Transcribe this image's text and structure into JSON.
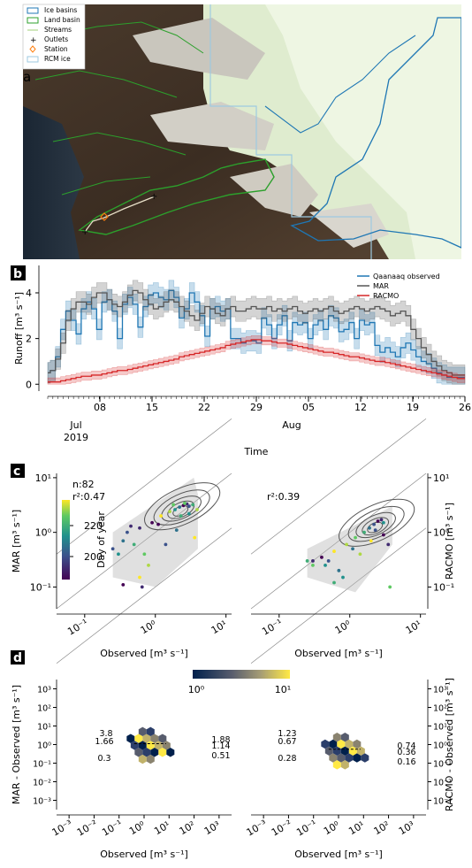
{
  "panels": {
    "a": {
      "label": "a",
      "legend": [
        {
          "label": "Ice basins",
          "symbol": "box",
          "color": "#1f77b4"
        },
        {
          "label": "Land basin",
          "symbol": "box",
          "color": "#2ca02c"
        },
        {
          "label": "Streams",
          "symbol": "line",
          "color": "#b0d890"
        },
        {
          "label": "Outlets",
          "symbol": "plus",
          "color": "#ff7f0e"
        },
        {
          "label": "Station",
          "symbol": "diamond",
          "color": "#ff7f0e"
        },
        {
          "label": "RCM ice",
          "symbol": "box",
          "color": "#9ecae1"
        }
      ]
    },
    "b": {
      "label": "b"
    },
    "c": {
      "label": "c"
    },
    "d": {
      "label": "d"
    }
  },
  "chart_data": [
    {
      "type": "line",
      "panel": "b",
      "ylabel": "Runoff [m³ s⁻¹]",
      "xlabel": "Time",
      "ylim": [
        -0.3,
        5.2
      ],
      "yticks": [
        "0",
        "2",
        "4"
      ],
      "xticks": [
        "08",
        "15",
        "22",
        "29",
        "05",
        "12",
        "19",
        "26"
      ],
      "month_labels": [
        {
          "text": "Jul",
          "sub": "2019"
        },
        {
          "text": "Aug",
          "sub": ""
        }
      ],
      "x_start": "2019-07-01",
      "series": [
        {
          "name": "Qaanaaq observed",
          "color": "#1f77b4",
          "values": [
            0.5,
            0.6,
            1.2,
            2.4,
            3.2,
            2.8,
            2.2,
            3.3,
            3.6,
            3.3,
            2.4,
            3.6,
            3.7,
            3.2,
            2.0,
            3.5,
            3.8,
            3.5,
            2.5,
            3.4,
            3.9,
            4.0,
            3.8,
            3.7,
            4.1,
            3.8,
            2.9,
            3.3,
            4.0,
            3.6,
            3.0,
            2.1,
            3.3,
            3.4,
            3.2,
            3.3,
            2.0,
            2.0,
            1.8,
            1.9,
            1.9,
            1.8,
            2.9,
            2.6,
            2.0,
            2.6,
            3.0,
            1.9,
            2.7,
            2.6,
            2.7,
            2.0,
            2.6,
            2.8,
            2.4,
            3.0,
            2.9,
            2.3,
            2.4,
            2.7,
            2.0,
            2.8,
            2.6,
            2.7,
            1.7,
            1.4,
            1.6,
            1.4,
            1.2,
            1.6,
            1.8,
            1.5,
            1.2,
            1.0,
            0.9,
            0.7,
            0.5,
            0.4,
            0.3,
            0.3,
            0.3,
            0.3
          ]
        },
        {
          "name": "MAR",
          "color": "#555555",
          "values": [
            0.5,
            0.6,
            1.1,
            1.8,
            2.8,
            3.3,
            3.6,
            3.6,
            3.5,
            3.8,
            4.0,
            4.0,
            3.7,
            3.5,
            3.4,
            3.6,
            3.9,
            4.1,
            4.0,
            3.7,
            3.5,
            3.3,
            3.4,
            3.6,
            3.7,
            3.6,
            3.4,
            3.2,
            3.0,
            2.8,
            3.1,
            3.4,
            3.3,
            3.1,
            3.0,
            3.3,
            3.4,
            3.2,
            3.2,
            3.3,
            3.4,
            3.3,
            3.3,
            3.4,
            3.2,
            3.3,
            3.2,
            3.3,
            3.4,
            3.2,
            3.1,
            3.2,
            3.3,
            3.2,
            3.3,
            3.4,
            3.2,
            3.1,
            3.2,
            3.3,
            3.4,
            3.3,
            3.2,
            3.3,
            3.4,
            3.3,
            3.2,
            3.0,
            3.1,
            3.2,
            3.0,
            2.4,
            2.0,
            1.6,
            1.3,
            1.0,
            0.8,
            0.6,
            0.5,
            0.4,
            0.4,
            0.4
          ]
        },
        {
          "name": "RACMO",
          "color": "#d62728",
          "values": [
            0.1,
            0.1,
            0.1,
            0.15,
            0.2,
            0.25,
            0.3,
            0.35,
            0.35,
            0.4,
            0.4,
            0.45,
            0.5,
            0.55,
            0.6,
            0.6,
            0.65,
            0.7,
            0.75,
            0.8,
            0.85,
            0.9,
            0.95,
            1.0,
            1.05,
            1.1,
            1.2,
            1.25,
            1.3,
            1.35,
            1.4,
            1.45,
            1.5,
            1.55,
            1.6,
            1.7,
            1.75,
            1.8,
            1.85,
            1.9,
            1.95,
            1.95,
            1.9,
            1.9,
            1.85,
            1.8,
            1.8,
            1.75,
            1.7,
            1.65,
            1.6,
            1.55,
            1.5,
            1.45,
            1.4,
            1.4,
            1.35,
            1.3,
            1.25,
            1.2,
            1.2,
            1.15,
            1.1,
            1.05,
            1.0,
            1.0,
            0.95,
            0.9,
            0.85,
            0.8,
            0.75,
            0.7,
            0.65,
            0.6,
            0.55,
            0.5,
            0.45,
            0.4,
            0.35,
            0.3,
            0.25,
            0.25
          ]
        }
      ]
    },
    {
      "type": "scatter",
      "panel": "c-left",
      "xlabel": "Observed [m³ s⁻¹]",
      "ylabel": "MAR [m³ s⁻¹]",
      "xscale": "log",
      "yscale": "log",
      "xlim": [
        0.04,
        12
      ],
      "ylim": [
        0.03,
        12
      ],
      "annotation_n": "n:82",
      "annotation_r2": "r²:0.47",
      "colorbar_label": "Day of year",
      "colorbar_ticks": [
        "200",
        "220"
      ],
      "points": [
        [
          2.5,
          3.1
        ],
        [
          2.8,
          3.3
        ],
        [
          3.0,
          3.0
        ],
        [
          2.2,
          2.9
        ],
        [
          1.9,
          2.6
        ],
        [
          3.4,
          3.2
        ],
        [
          2.6,
          3.4
        ],
        [
          1.6,
          2.4
        ],
        [
          1.2,
          2.0
        ],
        [
          0.9,
          1.5
        ],
        [
          0.6,
          1.2
        ],
        [
          0.4,
          1.0
        ],
        [
          0.35,
          0.7
        ],
        [
          0.3,
          0.4
        ],
        [
          0.5,
          0.6
        ],
        [
          0.7,
          0.4
        ],
        [
          0.8,
          0.25
        ],
        [
          0.6,
          0.15
        ],
        [
          0.35,
          0.11
        ],
        [
          0.65,
          0.1
        ],
        [
          1.4,
          0.6
        ],
        [
          2.0,
          1.1
        ],
        [
          3.0,
          2.2
        ],
        [
          2.3,
          2.0
        ],
        [
          1.8,
          3.2
        ],
        [
          3.9,
          2.6
        ],
        [
          3.6,
          0.8
        ],
        [
          1.1,
          1.4
        ],
        [
          0.45,
          1.3
        ],
        [
          0.25,
          0.5
        ]
      ]
    },
    {
      "type": "scatter",
      "panel": "c-right",
      "xlabel": "Observed [m³ s⁻¹]",
      "ylabel": "RACMO [m³ s⁻¹]",
      "xscale": "log",
      "yscale": "log",
      "annotation_r2": "r²:0.39",
      "points": [
        [
          2.5,
          1.6
        ],
        [
          2.8,
          1.7
        ],
        [
          2.2,
          1.4
        ],
        [
          1.9,
          1.2
        ],
        [
          3.0,
          1.5
        ],
        [
          1.6,
          1.0
        ],
        [
          1.2,
          0.8
        ],
        [
          0.9,
          0.6
        ],
        [
          0.6,
          0.45
        ],
        [
          0.4,
          0.35
        ],
        [
          0.3,
          0.3
        ],
        [
          0.5,
          0.3
        ],
        [
          0.7,
          0.2
        ],
        [
          0.8,
          0.15
        ],
        [
          0.6,
          0.12
        ],
        [
          0.3,
          0.25
        ],
        [
          1.4,
          0.4
        ],
        [
          2.0,
          0.7
        ],
        [
          3.0,
          0.9
        ],
        [
          3.5,
          0.6
        ],
        [
          2.3,
          1.1
        ],
        [
          1.1,
          0.5
        ],
        [
          0.45,
          0.25
        ],
        [
          0.25,
          0.3
        ],
        [
          3.7,
          0.1
        ]
      ]
    },
    {
      "type": "heatmap",
      "panel": "d-left",
      "xlabel": "Observed [m³ s⁻¹]",
      "ylabel": "MAR - Observed [m³ s⁻¹]",
      "colorbar_ticks": [
        "10⁰",
        "10¹"
      ],
      "left_stats": [
        "3.8",
        "1.66",
        "0.3"
      ],
      "right_stats": [
        "1.88",
        "1.14",
        "0.51"
      ]
    },
    {
      "type": "heatmap",
      "panel": "d-right",
      "xlabel": "Observed [m³ s⁻¹]",
      "ylabel": "RACMO - Observed [m³ s⁻¹]",
      "left_stats": [
        "1.23",
        "0.67",
        "0.28"
      ],
      "right_stats": [
        "0.74",
        "0.36",
        "0.16"
      ]
    }
  ]
}
